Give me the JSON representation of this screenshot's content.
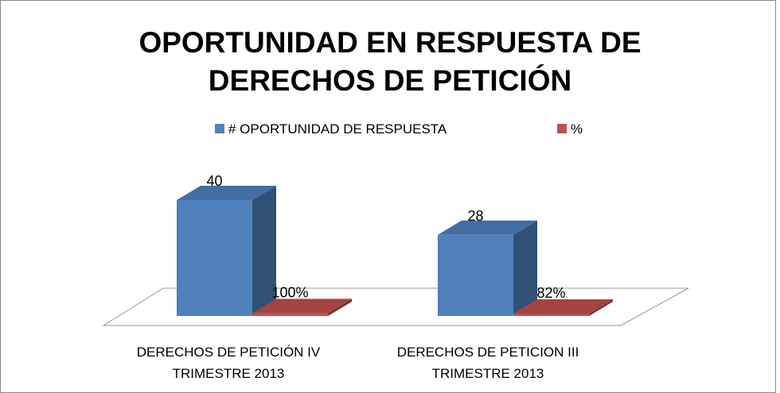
{
  "chart_data": {
    "type": "bar3d",
    "title": "OPORTUNIDAD EN RESPUESTA DE DERECHOS DE PETICIÓN",
    "categories": [
      "DERECHOS DE PETICIÓN IV TRIMESTRE 2013",
      "DERECHOS DE PETICION III TRIMESTRE 2013"
    ],
    "series": [
      {
        "name": "# OPORTUNIDAD DE RESPUESTA",
        "color": "#4f81bd",
        "values": [
          40,
          28
        ]
      },
      {
        "name": "%",
        "color": "#c0504d",
        "values": [
          1,
          0.82
        ],
        "value_labels": [
          "100%",
          "82%"
        ]
      }
    ],
    "ylim": [
      0,
      40
    ],
    "legend": "top"
  }
}
